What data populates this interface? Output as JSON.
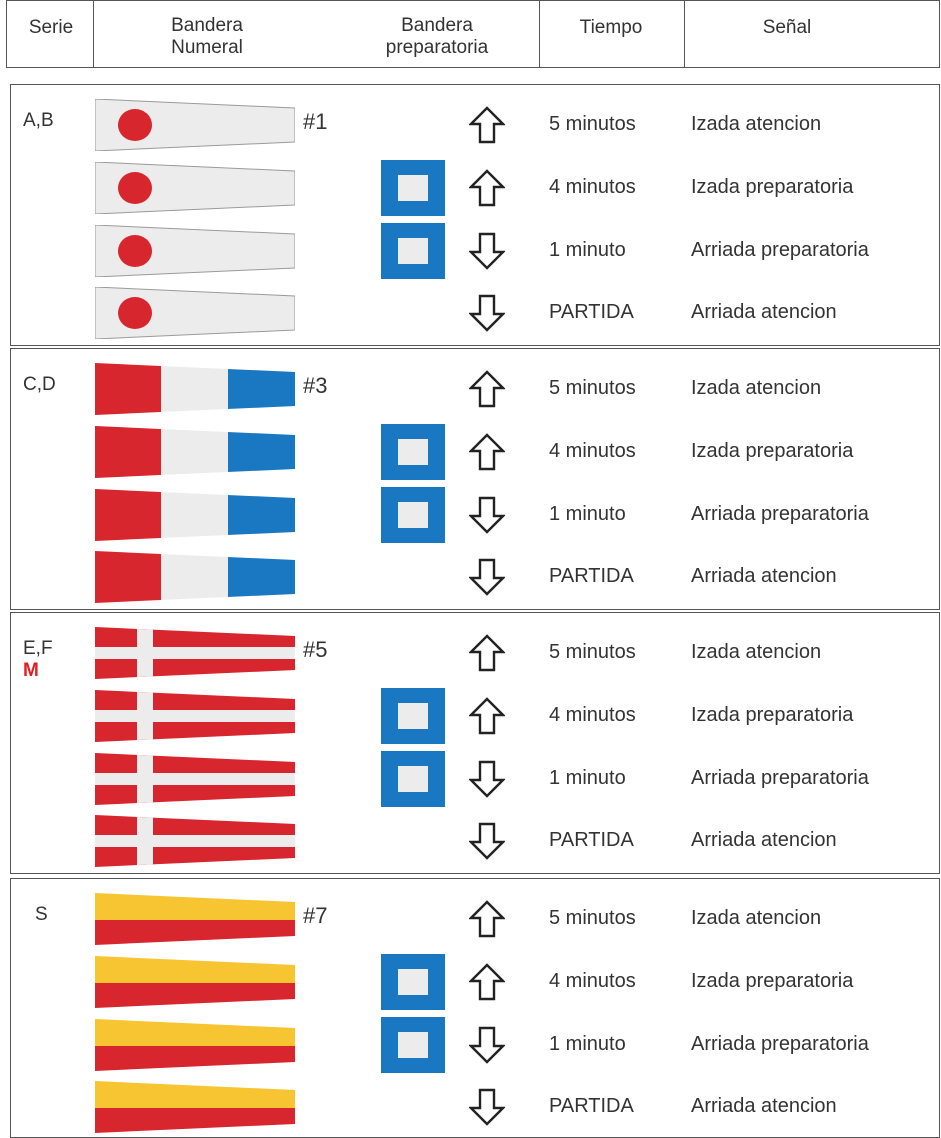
{
  "header": {
    "serie": "Serie",
    "numeral_line1": "Bandera",
    "numeral_line2": "Numeral",
    "prep_line1": "Bandera",
    "prep_line2": "preparatoria",
    "tiempo": "Tiempo",
    "senal": "Señal"
  },
  "colors": {
    "red": "#d8262e",
    "blue": "#1a78c2",
    "light": "#ececec",
    "yellow": "#f7c531",
    "border": "#555555"
  },
  "steps": [
    {
      "tiempo": "5 minutos",
      "senal": "Izada atencion",
      "direction": "up",
      "prep": false,
      "arrow_icon": "arrow-up-icon"
    },
    {
      "tiempo": "4 minutos",
      "senal": "Izada preparatoria",
      "direction": "up",
      "prep": true,
      "arrow_icon": "arrow-up-icon"
    },
    {
      "tiempo": "1 minuto",
      "senal": "Arriada preparatoria",
      "direction": "down",
      "prep": true,
      "arrow_icon": "arrow-down-icon"
    },
    {
      "tiempo": "PARTIDA",
      "senal": "Arriada atencion",
      "direction": "down",
      "prep": false,
      "arrow_icon": "arrow-down-icon"
    }
  ],
  "groups": [
    {
      "serie": "A,B",
      "extra": "",
      "numeral": "#1",
      "flag": "pennant-1"
    },
    {
      "serie": "C,D",
      "extra": "",
      "numeral": "#3",
      "flag": "pennant-3"
    },
    {
      "serie": "E,F",
      "extra": "M",
      "numeral": "#5",
      "flag": "pennant-5"
    },
    {
      "serie": "S",
      "extra": "",
      "numeral": "#7",
      "flag": "pennant-7"
    }
  ]
}
